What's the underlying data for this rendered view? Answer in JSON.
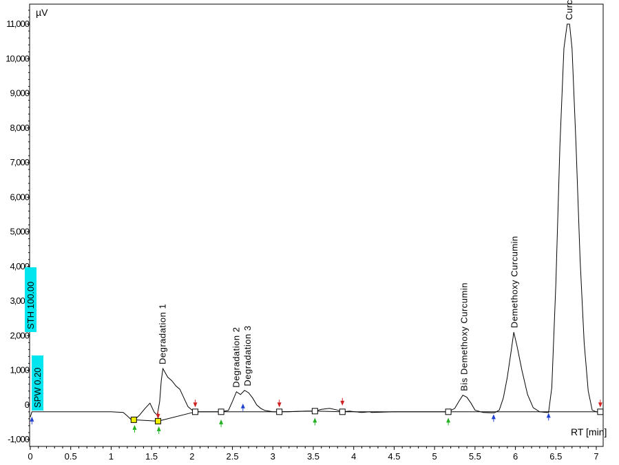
{
  "chart_data": {
    "type": "line",
    "title": "",
    "y_unit": "µV",
    "x_unit": "RT [min]",
    "xlim": [
      0,
      7.05
    ],
    "ylim": [
      -1000,
      11700
    ],
    "x_ticks": [
      0,
      0.5,
      1,
      1.5,
      2,
      2.5,
      3,
      3.5,
      4,
      4.5,
      5,
      5.5,
      6,
      6.5,
      7
    ],
    "x_tick_labels": [
      "0",
      "0.5",
      "1",
      "1.5",
      "2",
      "2.5",
      "3",
      "3.5",
      "4",
      "4.5",
      "5",
      "5.5",
      "6",
      "6.5",
      "7"
    ],
    "y_ticks": [
      -1000,
      0,
      1000,
      2000,
      3000,
      4000,
      5000,
      6000,
      7000,
      8000,
      9000,
      10000,
      11000
    ],
    "y_tick_labels": [
      "-1,000",
      "0",
      "1,000",
      "2,000",
      "3,000",
      "4,000",
      "5,000",
      "6,000",
      "7,000",
      "8,000",
      "9,000",
      "10,000",
      "11,000"
    ],
    "baseline": -200,
    "series": [
      {
        "x": [
          0,
          0.02,
          0.04,
          0.05,
          0.1,
          0.5,
          1.0,
          1.15,
          1.2,
          1.25,
          1.28,
          1.35,
          1.42,
          1.48,
          1.53,
          1.57,
          1.6,
          1.62,
          1.64,
          1.7,
          1.75,
          1.8,
          1.85,
          1.9,
          1.95,
          2.0,
          2.05,
          2.1,
          2.2,
          2.36,
          2.45,
          2.5,
          2.55,
          2.6,
          2.65,
          2.7,
          2.75,
          2.8,
          2.85,
          2.9,
          3.0,
          3.08,
          3.2,
          3.4,
          3.52,
          3.6,
          3.7,
          3.8,
          3.86,
          3.95,
          4.1,
          4.2,
          4.22,
          4.5,
          5.0,
          5.17,
          5.25,
          5.3,
          5.35,
          5.4,
          5.45,
          5.5,
          5.6,
          5.7,
          5.74,
          5.8,
          5.85,
          5.9,
          5.95,
          5.98,
          6.02,
          6.08,
          6.15,
          6.22,
          6.3,
          6.38,
          6.41,
          6.45,
          6.5,
          6.55,
          6.6,
          6.64,
          6.67,
          6.7,
          6.75,
          6.8,
          6.85,
          6.9,
          6.95,
          7.0,
          7.05
        ],
        "y": [
          -350,
          -200,
          -200,
          -200,
          -200,
          -200,
          -200,
          -220,
          -320,
          -430,
          -450,
          -300,
          -100,
          50,
          -200,
          -300,
          100,
          700,
          1050,
          800,
          700,
          550,
          450,
          200,
          -50,
          -150,
          -200,
          -200,
          -200,
          -200,
          -160,
          100,
          380,
          300,
          420,
          350,
          200,
          0,
          -100,
          -160,
          -200,
          -200,
          -200,
          -180,
          -180,
          -130,
          -100,
          -150,
          -200,
          -180,
          -220,
          -200,
          -220,
          -200,
          -200,
          -200,
          -100,
          100,
          280,
          220,
          50,
          -150,
          -220,
          -230,
          -230,
          -150,
          200,
          800,
          1600,
          2100,
          1700,
          1000,
          300,
          -80,
          -200,
          -220,
          -220,
          500,
          3500,
          7500,
          10300,
          11000,
          11000,
          10300,
          7500,
          4200,
          1800,
          400,
          -150,
          -200,
          -200
        ]
      }
    ],
    "peak_labels": [
      {
        "text": "Degradation  1",
        "x": 1.64,
        "y": 1050
      },
      {
        "text": "Degradation 2",
        "x": 2.55,
        "y": 380
      },
      {
        "text": "Degradation 3",
        "x": 2.69,
        "y": 420
      },
      {
        "text": "Bis Demethoxy Curcumin",
        "x": 5.37,
        "y": 280
      },
      {
        "text": "Demethoxy Curcumin",
        "x": 5.99,
        "y": 2100
      },
      {
        "text": "Curcumin",
        "x": 6.67,
        "y": 11000
      }
    ],
    "baseline_marks": [
      {
        "x": 1.28,
        "y": -430,
        "color": "#f0f000"
      },
      {
        "x": 1.58,
        "y": -470,
        "color": "#f0f000"
      },
      {
        "x": 2.04,
        "y": -200,
        "color": "#ffffff"
      },
      {
        "x": 2.36,
        "y": -200,
        "color": "#ffffff"
      },
      {
        "x": 3.08,
        "y": -200,
        "color": "#ffffff"
      },
      {
        "x": 3.52,
        "y": -180,
        "color": "#ffffff"
      },
      {
        "x": 3.86,
        "y": -200,
        "color": "#ffffff"
      },
      {
        "x": 5.17,
        "y": -200,
        "color": "#ffffff"
      },
      {
        "x": 7.05,
        "y": -200,
        "color": "#ffffff"
      }
    ],
    "event_markers": [
      {
        "x": 0.02,
        "y": -440,
        "color": "#2040d0",
        "dir": "up"
      },
      {
        "x": 1.29,
        "y": -680,
        "color": "#20b020",
        "dir": "up"
      },
      {
        "x": 1.59,
        "y": -720,
        "color": "#20b020",
        "dir": "up"
      },
      {
        "x": 1.58,
        "y": -300,
        "color": "#d02020",
        "dir": "down"
      },
      {
        "x": 2.04,
        "y": 30,
        "color": "#d02020",
        "dir": "down"
      },
      {
        "x": 2.36,
        "y": -520,
        "color": "#20b020",
        "dir": "up"
      },
      {
        "x": 2.63,
        "y": -60,
        "color": "#2040d0",
        "dir": "up"
      },
      {
        "x": 3.08,
        "y": 30,
        "color": "#d02020",
        "dir": "down"
      },
      {
        "x": 3.52,
        "y": -470,
        "color": "#20b020",
        "dir": "up"
      },
      {
        "x": 3.86,
        "y": 80,
        "color": "#d02020",
        "dir": "down"
      },
      {
        "x": 5.17,
        "y": -470,
        "color": "#20b020",
        "dir": "up"
      },
      {
        "x": 5.73,
        "y": -370,
        "color": "#2040d0",
        "dir": "up"
      },
      {
        "x": 6.41,
        "y": -330,
        "color": "#2040d0",
        "dir": "up"
      },
      {
        "x": 7.05,
        "y": 30,
        "color": "#d02020",
        "dir": "down"
      }
    ],
    "parameter_markers": [
      {
        "text": "STH 100.00",
        "color": "#00e5ee"
      },
      {
        "text": "SPW 0.20",
        "color": "#00e5ee"
      }
    ],
    "grid": false,
    "legend": "none"
  }
}
